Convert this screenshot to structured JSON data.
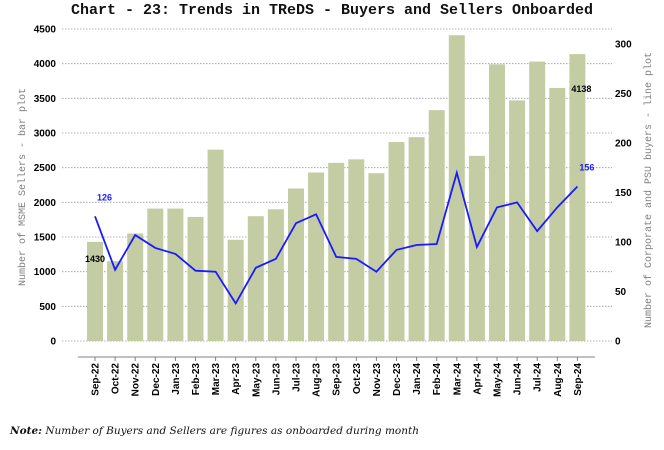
{
  "chart_data": {
    "type": "bar+line",
    "title": "Chart - 23: Trends in TReDS - Buyers and Sellers Onboarded",
    "xlabel": "",
    "ylabel_left": "Number of MSME Sellers - bar plot",
    "ylabel_right": "Number of Corporate and PSU buyers - line plot",
    "ylim_left": [
      0,
      4500
    ],
    "ylim_right": [
      0,
      300
    ],
    "yticks_left": [
      0,
      500,
      1000,
      1500,
      2000,
      2500,
      3000,
      3500,
      4000,
      4500
    ],
    "yticks_right": [
      0,
      50,
      100,
      150,
      200,
      250,
      300
    ],
    "grid": true,
    "categories": [
      "Sep-22",
      "Oct-22",
      "Nov-22",
      "Dec-22",
      "Jan-23",
      "Feb-23",
      "Mar-23",
      "Apr-23",
      "May-23",
      "Jun-23",
      "Jul-23",
      "Aug-23",
      "Sep-23",
      "Oct-23",
      "Nov-23",
      "Dec-23",
      "Jan-24",
      "Feb-24",
      "Mar-24",
      "Apr-24",
      "May-24",
      "Jun-24",
      "Jul-24",
      "Aug-24",
      "Sep-24"
    ],
    "series": [
      {
        "name": "MSME Sellers",
        "type": "bar",
        "axis": "left",
        "color": "#c3cca3",
        "values": [
          1430,
          1150,
          1550,
          1910,
          1910,
          1790,
          2760,
          1460,
          1800,
          1900,
          2200,
          2430,
          2570,
          2620,
          2420,
          2870,
          2940,
          3330,
          4410,
          2670,
          3990,
          3470,
          4030,
          3650,
          4138
        ]
      },
      {
        "name": "Corporate and PSU buyers",
        "type": "line",
        "axis": "right",
        "color": "#1a1aff",
        "values": [
          126,
          72,
          107,
          94,
          88,
          71,
          70,
          38,
          74,
          83,
          119,
          128,
          85,
          83,
          70,
          92,
          97,
          98,
          170,
          95,
          135,
          140,
          111,
          135,
          156
        ]
      }
    ],
    "data_labels": [
      {
        "series": "MSME Sellers",
        "category": "Sep-22",
        "text": "1430"
      },
      {
        "series": "MSME Sellers",
        "category": "Sep-24",
        "text": "4138"
      },
      {
        "series": "Corporate and PSU buyers",
        "category": "Sep-22",
        "text": "126"
      },
      {
        "series": "Corporate and PSU buyers",
        "category": "Sep-24",
        "text": "156"
      }
    ]
  },
  "note": {
    "prefix": "Note:",
    "text": " Number of Buyers and Sellers are figures as onboarded during month"
  }
}
